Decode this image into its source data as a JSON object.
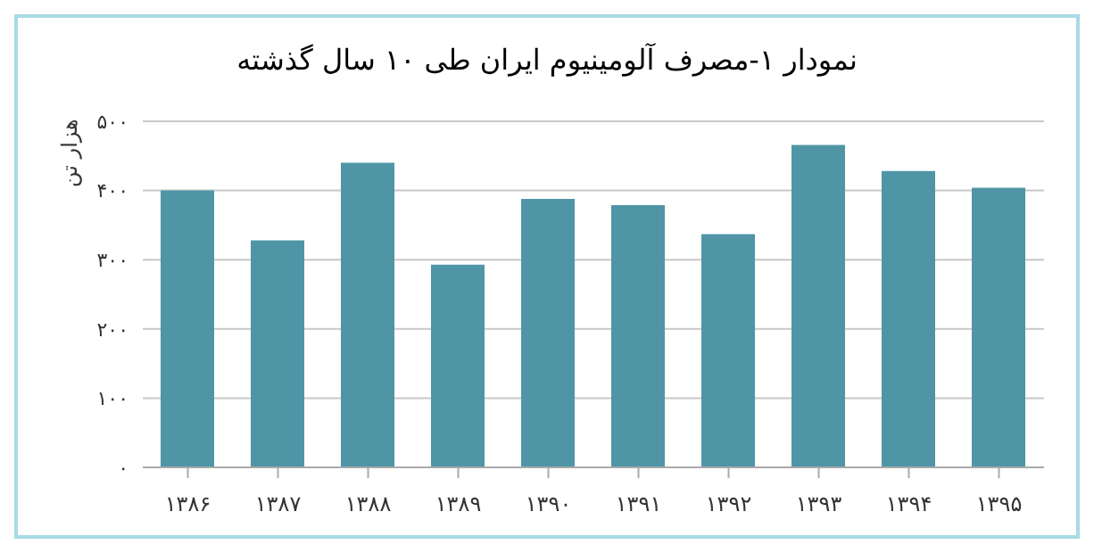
{
  "chart_data": {
    "type": "bar",
    "title": "نمودار ۱-مصرف آلومینیوم ایران طی ۱۰ سال گذشته",
    "ylabel": "هزار تن",
    "categories": [
      "۱۳۸۶",
      "۱۳۸۷",
      "۱۳۸۸",
      "۱۳۸۹",
      "۱۳۹۰",
      "۱۳۹۱",
      "۱۳۹۲",
      "۱۳۹۳",
      "۱۳۹۴",
      "۱۳۹۵"
    ],
    "values": [
      400,
      328,
      440,
      293,
      388,
      379,
      337,
      466,
      428,
      404
    ],
    "color": "#4f95a6",
    "ylim": [
      0,
      500
    ],
    "yticks": [
      {
        "value": 0,
        "label": "۰"
      },
      {
        "value": 100,
        "label": "۱۰۰"
      },
      {
        "value": 200,
        "label": "۲۰۰"
      },
      {
        "value": 300,
        "label": "۳۰۰"
      },
      {
        "value": 400,
        "label": "۴۰۰"
      },
      {
        "value": 500,
        "label": "۵۰۰"
      }
    ],
    "grid": "y"
  }
}
